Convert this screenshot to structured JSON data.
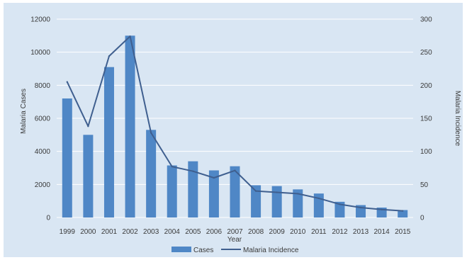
{
  "chart_data": {
    "type": "bar",
    "categories": [
      "1999",
      "2000",
      "2001",
      "2002",
      "2003",
      "2004",
      "2005",
      "2006",
      "2007",
      "2008",
      "2009",
      "2010",
      "2011",
      "2012",
      "2013",
      "2014",
      "2015"
    ],
    "series": [
      {
        "name": "Cases",
        "type": "bar",
        "axis": "left",
        "values": [
          7200,
          5000,
          9100,
          11000,
          5300,
          3150,
          3400,
          2850,
          3100,
          1950,
          1900,
          1700,
          1450,
          950,
          750,
          600,
          450
        ]
      },
      {
        "name": "Malaria Incidence",
        "type": "line",
        "axis": "right",
        "values": [
          205,
          138,
          244,
          274,
          128,
          77,
          70,
          60,
          71,
          40,
          38,
          36,
          29,
          20,
          15,
          12,
          10
        ]
      }
    ],
    "xlabel": "Year",
    "ylabel": "Malaria Cases",
    "y2label": "Malaria Incidence",
    "ylim": [
      0,
      12000
    ],
    "y2lim": [
      0,
      300
    ],
    "yticks": [
      0,
      2000,
      4000,
      6000,
      8000,
      10000,
      12000
    ],
    "y2ticks": [
      0,
      50,
      100,
      150,
      200,
      250,
      300
    ],
    "grid": true,
    "legend_position": "bottom",
    "colors": {
      "bar": "#4f87c6",
      "line": "#3f5f8f",
      "grid": "#ffffff",
      "background": "#d9e6f3"
    }
  }
}
